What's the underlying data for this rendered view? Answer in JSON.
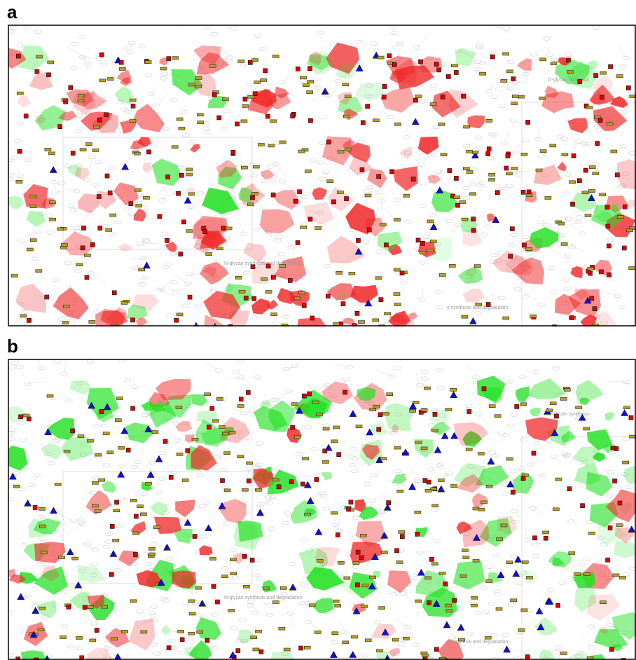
{
  "panels": [
    {
      "label": "a",
      "pathways": [
        "N-glycan synthesis and degradation",
        "O-glycan synthesis",
        "e synthesis and degradation"
      ]
    },
    {
      "label": "b",
      "pathways": [
        "N-glycan synthesis and degradation",
        "O-glycan synthesis",
        "e synthesis and degradation"
      ]
    }
  ]
}
